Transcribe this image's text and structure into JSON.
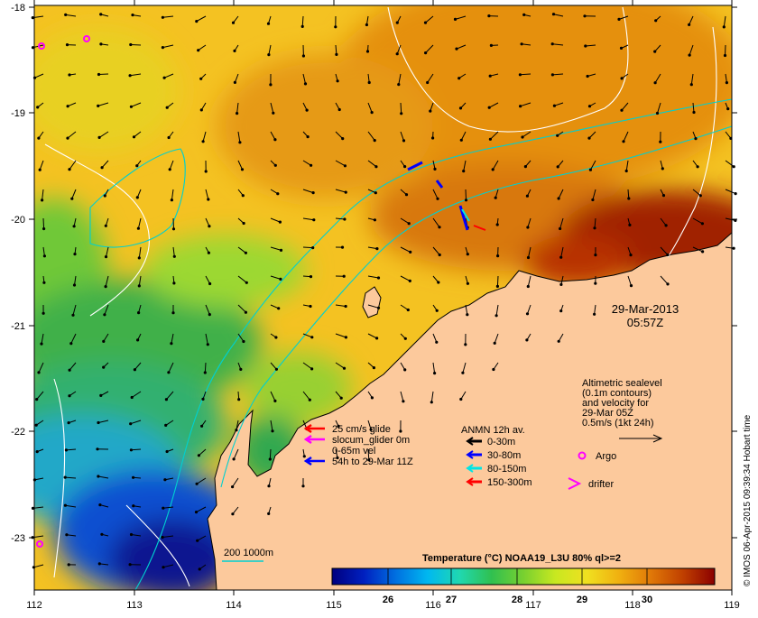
{
  "map": {
    "date": "29-Mar-2013",
    "time": "05:57Z",
    "credit": "© IMOS 06-Apr-2015 09:39:34 Hobart time",
    "x_ticks": [
      "112",
      "113",
      "114",
      "115",
      "116",
      "117",
      "118",
      "119"
    ],
    "y_ticks": [
      "-18",
      "-19",
      "-20",
      "-21",
      "-22",
      "-23"
    ]
  },
  "glider_legend": {
    "items": [
      {
        "label": "25 cm/s glide",
        "color": "#ff0000"
      },
      {
        "label": "slocum_glider 0m",
        "color": "#ff00ff"
      },
      {
        "label": "0-65m vel",
        "color": "#ff00ff"
      },
      {
        "label": "54h to 29-Mar 11Z",
        "color": "#0000ff"
      }
    ]
  },
  "anmn_legend": {
    "title": "ANMN 12h av.",
    "items": [
      {
        "label": "0-30m",
        "color": "#000000"
      },
      {
        "label": "30-80m",
        "color": "#0000ff"
      },
      {
        "label": "80-150m",
        "color": "#00e5e5"
      },
      {
        "label": "150-300m",
        "color": "#ff0000"
      }
    ]
  },
  "altimetry": {
    "lines": [
      "Altimetric sealevel",
      "(0.1m contours)",
      "and velocity for",
      "29-Mar 05Z",
      "0.5m/s (1kt 24h)"
    ]
  },
  "markers": {
    "argo": "Argo",
    "drifter": "drifter",
    "argo_color": "#ff00ff",
    "drifter_color": "#ff00ff"
  },
  "bathy": {
    "label": "200  1000m",
    "color": "#00d0d0"
  },
  "colorbar": {
    "title": "Temperature (°C) NOAA19_L3U 80% ql>=2",
    "ticks": [
      "26",
      "27",
      "28",
      "29",
      "30"
    ],
    "colors": [
      "#00007f",
      "#0020c0",
      "#0070e0",
      "#00b8f0",
      "#20d8b0",
      "#30c050",
      "#78d030",
      "#c8e820",
      "#f0e020",
      "#f0b010",
      "#e07808",
      "#c04000",
      "#8b0000"
    ]
  },
  "palette": {
    "land": "#fcc99c",
    "sst_warm": "#e08a10",
    "sst_hot": "#9a1a00",
    "sst_mid": "#f2c020",
    "sst_green": "#40b040",
    "sst_blue": "#1050d0"
  }
}
